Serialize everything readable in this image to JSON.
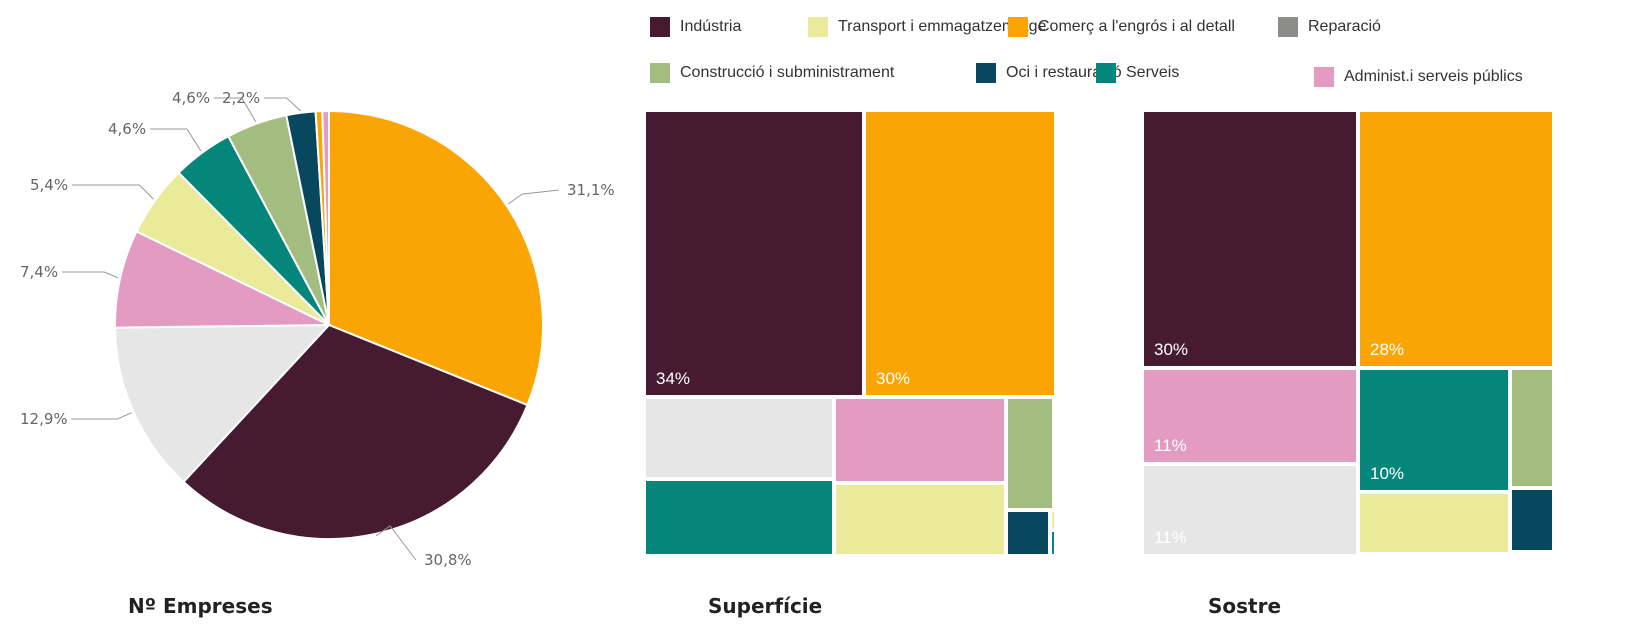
{
  "legend": [
    {
      "key": "industria",
      "label": "Indústria",
      "color": "#461b32"
    },
    {
      "key": "transport",
      "label": "Transport i emmagatzematge",
      "color": "#eaea9b"
    },
    {
      "key": "comerc",
      "label": "Comerç a l'engrós i al detall",
      "color": "#fba505"
    },
    {
      "key": "reparacio",
      "label": "Reparació",
      "color": "#8c8c8a"
    },
    {
      "key": "construccio",
      "label": "Construcció i subministrament",
      "color": "#a2bd7f"
    },
    {
      "key": "oci",
      "label": "Oci i restauració",
      "color": "#08485e"
    },
    {
      "key": "serveis",
      "label": "Serveis",
      "color": "#05867a"
    },
    {
      "key": "administ",
      "label": "Administ.i serveis públics",
      "color": "#e49bc1"
    }
  ],
  "captions": {
    "pie": "Nº Empreses",
    "treemap1": "Superfície",
    "treemap2": "Sostre"
  },
  "chart_data": [
    {
      "type": "pie",
      "title": "Nº Empreses",
      "slices": [
        {
          "key": "comerc",
          "value": 31.1,
          "label": "31,1%"
        },
        {
          "key": "industria",
          "value": 30.8,
          "label": "30,8%"
        },
        {
          "key": "other",
          "value": 12.9,
          "label": "12,9%",
          "color": "#e6e6e6"
        },
        {
          "key": "administ",
          "value": 7.4,
          "label": "7,4%"
        },
        {
          "key": "transport",
          "value": 5.4,
          "label": "5,4%"
        },
        {
          "key": "serveis",
          "value": 4.6,
          "label": "4,6%"
        },
        {
          "key": "construccio",
          "value": 4.6,
          "label": "4,6%"
        },
        {
          "key": "oci",
          "value": 2.2,
          "label": "2,2%"
        },
        {
          "key": "comerc",
          "value": 0.5,
          "label": ""
        },
        {
          "key": "administ",
          "value": 0.5,
          "label": ""
        }
      ]
    },
    {
      "type": "treemap",
      "title": "Superfície",
      "tiles": [
        {
          "key": "industria",
          "label": "34%"
        },
        {
          "key": "comerc",
          "label": "30%"
        },
        {
          "key": "other",
          "label": "",
          "color": "#e6e6e6"
        },
        {
          "key": "administ",
          "label": ""
        },
        {
          "key": "construccio",
          "label": ""
        },
        {
          "key": "serveis",
          "label": ""
        },
        {
          "key": "transport",
          "label": ""
        },
        {
          "key": "oci",
          "label": ""
        },
        {
          "key": "transport",
          "label": ""
        },
        {
          "key": "serveis",
          "label": ""
        }
      ]
    },
    {
      "type": "treemap",
      "title": "Sostre",
      "tiles": [
        {
          "key": "industria",
          "label": "30%"
        },
        {
          "key": "comerc",
          "label": "28%"
        },
        {
          "key": "administ",
          "label": "11%"
        },
        {
          "key": "serveis",
          "label": "10%"
        },
        {
          "key": "construccio",
          "label": ""
        },
        {
          "key": "other",
          "label": "11%",
          "color": "#e6e6e6"
        },
        {
          "key": "transport",
          "label": ""
        },
        {
          "key": "oci",
          "label": ""
        },
        {
          "key": "reparacio",
          "label": ""
        },
        {
          "key": "transport",
          "label": ""
        }
      ]
    }
  ]
}
